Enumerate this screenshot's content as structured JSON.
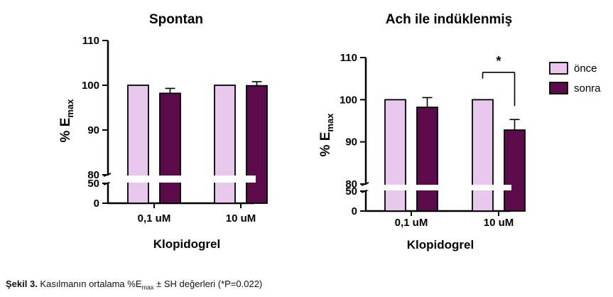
{
  "chart_data": [
    {
      "type": "bar",
      "title": "Spontan",
      "ylabel_main": "% E",
      "ylabel_sub": "max",
      "xlabel": "Klopidogrel",
      "categories": [
        "0,1 uM",
        "10 uM"
      ],
      "series": [
        {
          "name": "önce",
          "values": [
            100,
            100
          ],
          "errors": [
            0,
            0
          ]
        },
        {
          "name": "sonra",
          "values": [
            98.2,
            99.9
          ],
          "errors": [
            1.1,
            0.9
          ]
        }
      ],
      "y_upper_ticks": [
        "110",
        "100",
        "90",
        "80"
      ],
      "y_lower_ticks": [
        "50",
        "0"
      ],
      "axis_break": [
        50,
        80
      ],
      "ylim": [
        0,
        110
      ]
    },
    {
      "type": "bar",
      "title": "Ach ile indüklenmiş",
      "ylabel_main": "% E",
      "ylabel_sub": "max",
      "xlabel": "Klopidogrel",
      "categories": [
        "0,1 uM",
        "10 uM"
      ],
      "series": [
        {
          "name": "önce",
          "values": [
            100,
            100
          ],
          "errors": [
            0,
            0
          ]
        },
        {
          "name": "sonra",
          "values": [
            98.2,
            92.8
          ],
          "errors": [
            2.3,
            2.5
          ]
        }
      ],
      "y_upper_ticks": [
        "110",
        "100",
        "90",
        "80"
      ],
      "y_lower_ticks": [
        "50",
        "0"
      ],
      "axis_break": [
        50,
        80
      ],
      "ylim": [
        0,
        110
      ],
      "significance": {
        "category": "10 uM",
        "label": "*"
      }
    }
  ],
  "legend": [
    {
      "label": "önce",
      "color": "#E9C8EE"
    },
    {
      "label": "sonra",
      "color": "#5B0A4A"
    }
  ],
  "colors": {
    "once": "#E9C8EE",
    "sonra": "#5B0A4A",
    "axis": "#000000"
  },
  "caption": {
    "label": "Şekil 3.",
    "text_before": " Kasılmanın ortalama %E",
    "subscript": "max",
    "text_after": " ± SH değerleri (*P=0.022)"
  }
}
